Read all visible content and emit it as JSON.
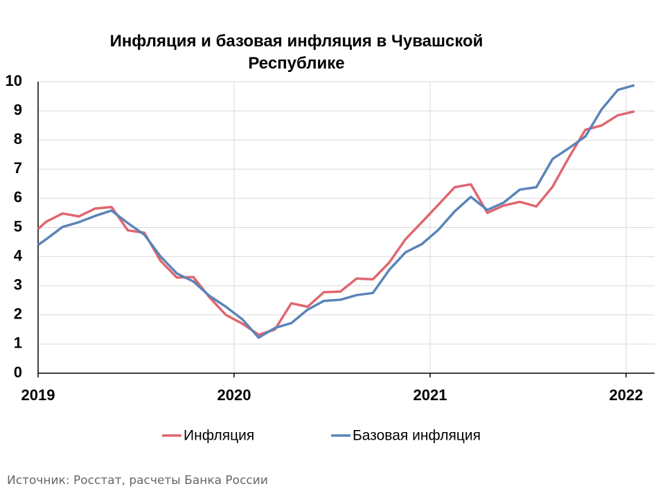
{
  "chart_data": {
    "type": "line",
    "title": "Инфляция и базовая инфляция в Чувашской Республике",
    "source": "Источник: Росстат, расчеты Банка России",
    "x": [
      2019,
      2019.042,
      2019.125,
      2019.208,
      2019.292,
      2019.375,
      2019.458,
      2019.542,
      2019.625,
      2019.708,
      2019.792,
      2019.875,
      2019.958,
      2020.042,
      2020.125,
      2020.208,
      2020.292,
      2020.375,
      2020.458,
      2020.542,
      2020.625,
      2020.708,
      2020.792,
      2020.875,
      2020.958,
      2021.042,
      2021.125,
      2021.208,
      2021.292,
      2021.375,
      2021.458,
      2021.542,
      2021.625,
      2021.708,
      2021.792,
      2021.875,
      2021.958,
      2022.042
    ],
    "series": [
      {
        "name": "Инфляция",
        "color": "#e0666f",
        "values": [
          4.95,
          5.2,
          5.48,
          5.38,
          5.65,
          5.7,
          4.9,
          4.82,
          3.85,
          3.28,
          3.3,
          2.6,
          2.0,
          1.7,
          1.32,
          1.5,
          2.4,
          2.28,
          2.78,
          2.8,
          3.25,
          3.22,
          3.8,
          4.6,
          5.18,
          5.78,
          6.38,
          6.48,
          5.5,
          5.75,
          5.88,
          5.72,
          6.4,
          7.4,
          8.35,
          8.5,
          8.85,
          8.98
        ]
      },
      {
        "name": "Базовая инфляция",
        "color": "#5b84b8",
        "values": [
          4.4,
          4.6,
          5.02,
          5.18,
          5.4,
          5.58,
          5.15,
          4.75,
          4.0,
          3.42,
          3.15,
          2.65,
          2.28,
          1.85,
          1.22,
          1.55,
          1.72,
          2.18,
          2.48,
          2.52,
          2.68,
          2.75,
          3.55,
          4.15,
          4.43,
          4.92,
          5.55,
          6.05,
          5.6,
          5.85,
          6.3,
          6.38,
          7.35,
          7.72,
          8.12,
          9.05,
          9.72,
          9.88
        ]
      }
    ],
    "xlim": [
      2019,
      2022.145
    ],
    "xticks": [
      2019,
      2020,
      2021,
      2022
    ],
    "ylim": [
      0,
      10
    ],
    "yticks": [
      0,
      1,
      2,
      3,
      4,
      5,
      6,
      7,
      8,
      9,
      10
    ],
    "grid": true,
    "legend": "bottom"
  }
}
